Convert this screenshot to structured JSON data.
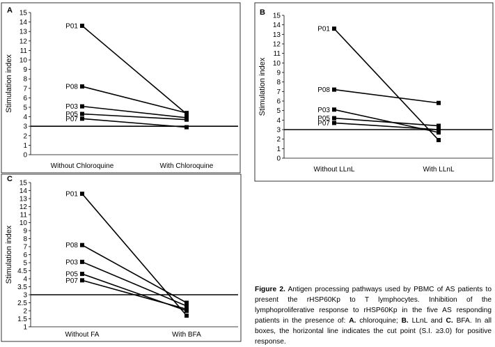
{
  "chart_data": [
    {
      "type": "line",
      "panel": "A",
      "ylabel": "Stimulation index",
      "ylim": [
        0,
        15
      ],
      "yticks": [
        "0",
        "1",
        "2",
        "3",
        "4",
        "5",
        "6",
        "7",
        "8",
        "9",
        "10",
        "11",
        "12",
        "13",
        "14",
        "15"
      ],
      "categories": [
        "Without Chloroquine",
        "With Chloroquine"
      ],
      "cut_point": 3.0,
      "series": [
        {
          "name": "P01",
          "values": [
            13.6,
            4.3
          ]
        },
        {
          "name": "P08",
          "values": [
            7.2,
            4.4
          ]
        },
        {
          "name": "P03",
          "values": [
            5.1,
            3.9
          ]
        },
        {
          "name": "P05",
          "values": [
            4.3,
            3.7
          ]
        },
        {
          "name": "P07",
          "values": [
            3.8,
            2.9
          ]
        }
      ]
    },
    {
      "type": "line",
      "panel": "B",
      "ylabel": "Stimulation index",
      "ylim": [
        0,
        15
      ],
      "yticks": [
        "0",
        "1",
        "2",
        "3",
        "4",
        "5",
        "6",
        "7",
        "8",
        "9",
        "10",
        "11",
        "12",
        "13",
        "14",
        "15"
      ],
      "categories": [
        "Without  LLnL",
        "With  LLnL"
      ],
      "cut_point": 3.0,
      "series": [
        {
          "name": "P01",
          "values": [
            13.6,
            1.9
          ]
        },
        {
          "name": "P08",
          "values": [
            7.2,
            5.8
          ]
        },
        {
          "name": "P03",
          "values": [
            5.1,
            2.7
          ]
        },
        {
          "name": "P05",
          "values": [
            4.2,
            3.4
          ]
        },
        {
          "name": "P07",
          "values": [
            3.7,
            3.0
          ]
        }
      ]
    },
    {
      "type": "line",
      "panel": "C",
      "ylabel": "Stimulation index",
      "ylim": [
        1,
        15
      ],
      "yticks": [
        "1",
        "1.5",
        "2",
        "2.5",
        "3",
        "3.5",
        "4",
        "4.5",
        "5",
        "6",
        "7",
        "8",
        "9",
        "10",
        "11",
        "12",
        "13",
        "14",
        "15"
      ],
      "categories": [
        "Without    FA",
        "With BFA"
      ],
      "cut_point": 3.0,
      "series": [
        {
          "name": "P01",
          "values": [
            13.6,
            1.7
          ]
        },
        {
          "name": "P08",
          "values": [
            7.2,
            2.5
          ]
        },
        {
          "name": "P03",
          "values": [
            5.1,
            2.3
          ]
        },
        {
          "name": "P05",
          "values": [
            4.3,
            2.0
          ]
        },
        {
          "name": "P07",
          "values": [
            3.9,
            2.1
          ]
        }
      ]
    }
  ],
  "caption": {
    "figure": "Figure 2.",
    "text1": " Antigen processing pathways used by PBMC of AS patients to present the rHSP60Kp to T lymphocytes. Inhibition of the lymphoproliferative response to rHSP60Kp in the five AS responding patients in the presence of: ",
    "a": "A.",
    "a_text": " chloroquine; ",
    "b": "B.",
    "b_text": " LLnL and ",
    "c": "C.",
    "c_text": " BFA. In all boxes, the horizontal line indicates the cut point (S.I. ≥3.0) for positive response."
  }
}
